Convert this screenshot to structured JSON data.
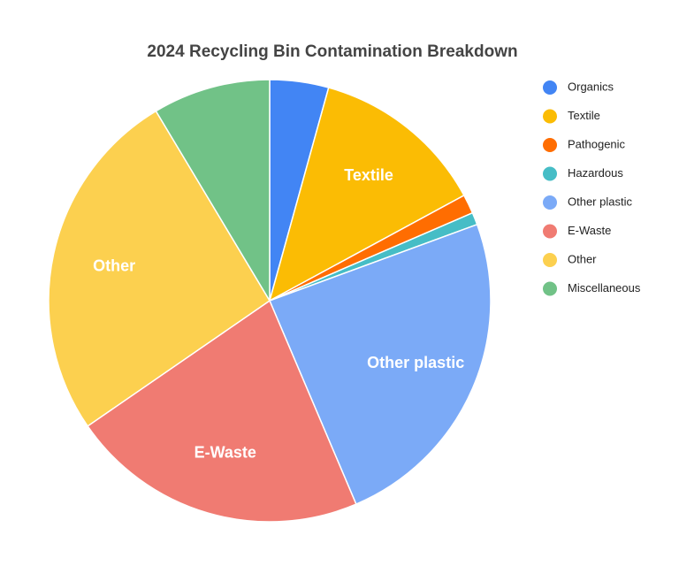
{
  "chart_data": {
    "type": "pie",
    "title": "2024 Recycling Bin Contamination Breakdown",
    "categories": [
      "Organics",
      "Textile",
      "Pathogenic",
      "Hazardous",
      "Other plastic",
      "E-Waste",
      "Other",
      "Miscellaneous"
    ],
    "values": [
      4.3,
      12.8,
      1.4,
      0.9,
      24.2,
      21.8,
      26.0,
      8.6
    ],
    "colors": [
      "#4285f4",
      "#fbbc04",
      "#ff6d01",
      "#46bdc6",
      "#7baaf7",
      "#f07b72",
      "#fcd04f",
      "#71c287"
    ],
    "legend": "right"
  }
}
